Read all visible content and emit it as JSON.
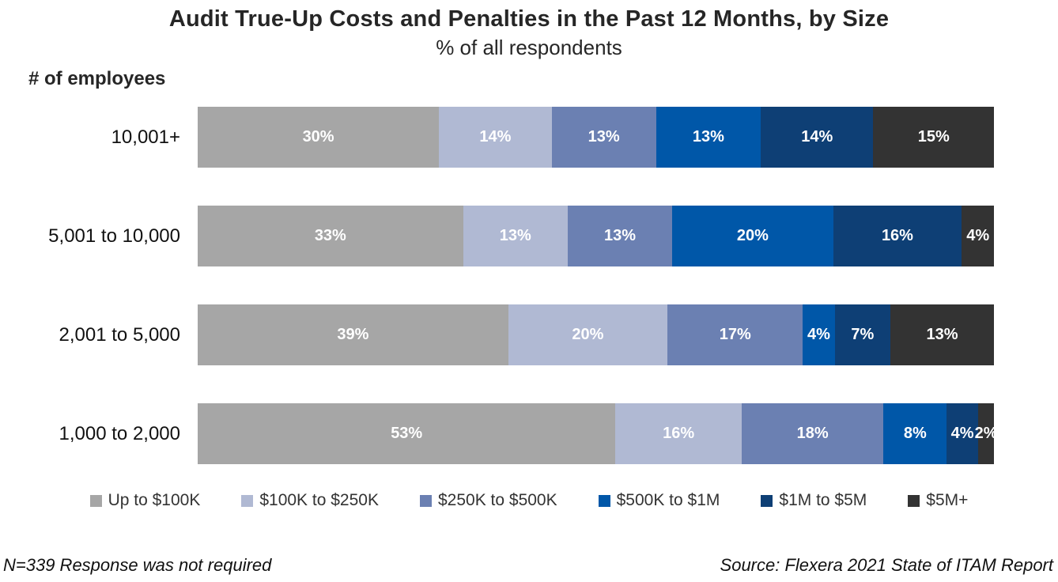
{
  "title": "Audit True-Up Costs and Penalties in the Past 12 Months, by Size",
  "subtitle": "% of all respondents",
  "axis_label": "# of employees",
  "footnote": "N=339 Response was not required",
  "source": "Source: Flexera 2021 State of ITAM Report",
  "chart_data": {
    "type": "bar",
    "orientation": "horizontal_stacked",
    "unit": "%",
    "legend_position": "bottom",
    "data_labels": "inside, white, bold",
    "categories": [
      "10,001+",
      "5,001 to 10,000",
      "2,001 to 5,000",
      "1,000 to 2,000"
    ],
    "series": [
      {
        "name": "Up to $100K",
        "color": "#a6a6a6",
        "values": [
          30,
          33,
          39,
          53
        ]
      },
      {
        "name": "$100K to $250K",
        "color": "#b0b9d3",
        "values": [
          14,
          13,
          20,
          16
        ]
      },
      {
        "name": "$250K to $500K",
        "color": "#6b80b2",
        "values": [
          13,
          13,
          17,
          18
        ]
      },
      {
        "name": "$500K to $1M",
        "color": "#0057a8",
        "values": [
          13,
          20,
          4,
          8
        ]
      },
      {
        "name": "$1M to $5M",
        "color": "#0e3f75",
        "values": [
          14,
          16,
          7,
          4
        ]
      },
      {
        "name": "$5M+",
        "color": "#333333",
        "values": [
          15,
          4,
          13,
          2
        ]
      }
    ]
  }
}
